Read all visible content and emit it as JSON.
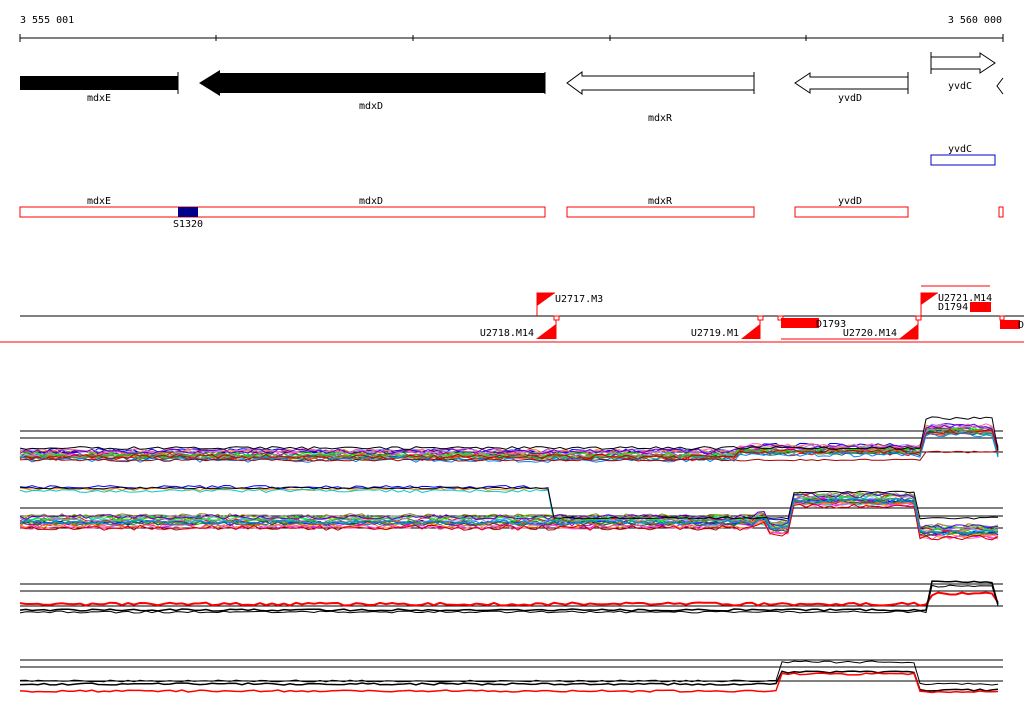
{
  "ruler": {
    "start_label": "3 555 001",
    "end_label": "3 560 000"
  },
  "genes_top": [
    {
      "name": "mdxE",
      "strand": "-",
      "style": "filled"
    },
    {
      "name": "mdxD",
      "strand": "-",
      "style": "filled"
    },
    {
      "name": "mdxR",
      "strand": "-",
      "style": "outline"
    },
    {
      "name": "yvdD",
      "strand": "-",
      "style": "outline"
    },
    {
      "name": "yvdC",
      "strand": "+",
      "style": "outline"
    }
  ],
  "annot_track2": [
    {
      "name": "yvdC"
    }
  ],
  "annot_track3": [
    {
      "name": "mdxE"
    },
    {
      "name": "mdxD"
    },
    {
      "name": "mdxR"
    },
    {
      "name": "yvdD"
    }
  ],
  "marker": {
    "name": "S1320",
    "color": "#00008b"
  },
  "transcripts": [
    {
      "name": "U2717.M3"
    },
    {
      "name": "U2718.M14"
    },
    {
      "name": "U2719.M1"
    },
    {
      "name": "U2720.M14"
    },
    {
      "name": "U2721.M14"
    }
  ],
  "small_features": [
    {
      "name": "D1793"
    },
    {
      "name": "D1794"
    },
    {
      "name": "D"
    }
  ],
  "colors": {
    "feature_red": "#ff0000",
    "annot_blue": "#0000cc",
    "marker_blue": "#00008b",
    "axis": "#000000"
  }
}
